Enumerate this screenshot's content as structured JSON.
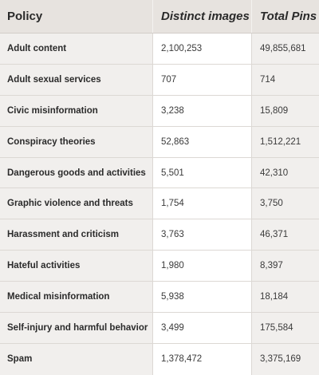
{
  "headers": {
    "policy": "Policy",
    "distinct_images": "Distinct images",
    "total_pins": "Total Pins"
  },
  "rows": [
    {
      "policy": "Adult content",
      "distinct_images": "2,100,253",
      "total_pins": "49,855,681"
    },
    {
      "policy": "Adult sexual services",
      "distinct_images": "707",
      "total_pins": "714"
    },
    {
      "policy": "Civic misinformation",
      "distinct_images": "3,238",
      "total_pins": "15,809"
    },
    {
      "policy": "Conspiracy theories",
      "distinct_images": "52,863",
      "total_pins": "1,512,221"
    },
    {
      "policy": "Dangerous goods and activities",
      "distinct_images": "5,501",
      "total_pins": "42,310"
    },
    {
      "policy": "Graphic violence and threats",
      "distinct_images": "1,754",
      "total_pins": "3,750"
    },
    {
      "policy": "Harassment and criticism",
      "distinct_images": "3,763",
      "total_pins": "46,371"
    },
    {
      "policy": "Hateful activities",
      "distinct_images": "1,980",
      "total_pins": "8,397"
    },
    {
      "policy": "Medical misinformation",
      "distinct_images": "5,938",
      "total_pins": "18,184"
    },
    {
      "policy": "Self-injury and harmful behavior",
      "distinct_images": "3,499",
      "total_pins": "175,584"
    },
    {
      "policy": "Spam",
      "distinct_images": "1,378,472",
      "total_pins": "3,375,169"
    }
  ]
}
